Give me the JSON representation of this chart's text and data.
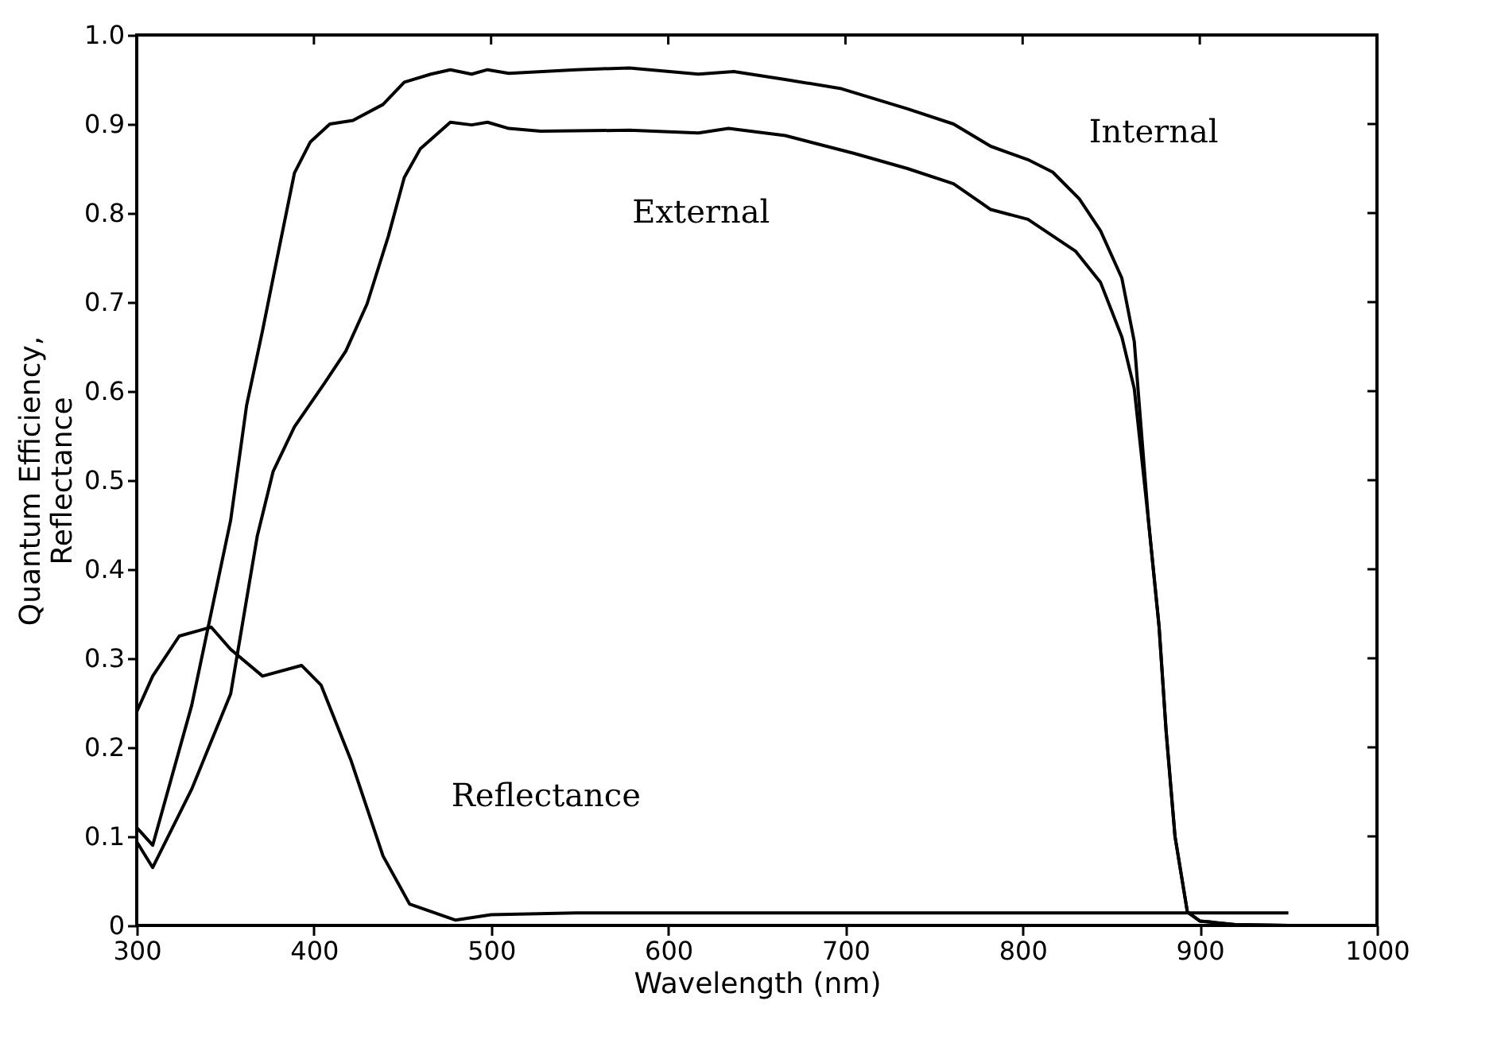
{
  "chart_data": {
    "type": "line",
    "xlabel": "Wavelength (nm)",
    "ylabel": "Quantum Efficiency,\nReflectance",
    "xlim": [
      300,
      1000
    ],
    "xticks": [
      300,
      400,
      500,
      600,
      700,
      800,
      900,
      1000
    ],
    "ylim": [
      0,
      1
    ],
    "yticks": [
      0,
      0.1,
      0.2,
      0.3,
      0.4,
      0.5,
      0.6,
      0.7,
      0.8,
      0.9,
      {
        "value": 1,
        "label": "1.0"
      }
    ],
    "grid": false,
    "legend": false,
    "marker": "none",
    "line_style": "solid",
    "series": [
      {
        "color": "#000000",
        "x": [
          300,
          309,
          331,
          353,
          362,
          371,
          380,
          389,
          398,
          409,
          422,
          439,
          451,
          466,
          477,
          489,
          498,
          510,
          548,
          578,
          617,
          637,
          666,
          697,
          735,
          761,
          782,
          803,
          817,
          832,
          844,
          856,
          863,
          871,
          877,
          881,
          886,
          893,
          900,
          920,
          950
        ],
        "values": [
          0.11,
          0.09,
          0.247,
          0.455,
          0.584,
          0.668,
          0.757,
          0.845,
          0.88,
          0.9,
          0.904,
          0.922,
          0.947,
          0.956,
          0.961,
          0.956,
          0.961,
          0.957,
          0.961,
          0.963,
          0.956,
          0.959,
          0.95,
          0.94,
          0.917,
          0.9,
          0.875,
          0.86,
          0.846,
          0.816,
          0.78,
          0.727,
          0.656,
          0.455,
          0.336,
          0.218,
          0.1,
          0.015,
          0.005,
          0.001,
          0
        ]
      },
      {
        "color": "#000000",
        "x": [
          300,
          309,
          331,
          353,
          368,
          377,
          389,
          406,
          418,
          430,
          442,
          451,
          460,
          477,
          489,
          498,
          510,
          528,
          578,
          617,
          634,
          666,
          705,
          735,
          761,
          782,
          803,
          830,
          844,
          856,
          863,
          871,
          877,
          881,
          886,
          893,
          900,
          920,
          950
        ],
        "values": [
          0.094,
          0.065,
          0.153,
          0.26,
          0.437,
          0.51,
          0.56,
          0.609,
          0.645,
          0.698,
          0.774,
          0.84,
          0.872,
          0.902,
          0.899,
          0.902,
          0.895,
          0.892,
          0.893,
          0.89,
          0.895,
          0.887,
          0.867,
          0.85,
          0.833,
          0.804,
          0.793,
          0.757,
          0.722,
          0.661,
          0.603,
          0.455,
          0.336,
          0.218,
          0.1,
          0.015,
          0.005,
          0.001,
          0
        ]
      },
      {
        "color": "#000000",
        "x": [
          300,
          309,
          324,
          342,
          353,
          371,
          393,
          404,
          421,
          439,
          454,
          480,
          500,
          548,
          600,
          700,
          800,
          900,
          950
        ],
        "values": [
          0.24,
          0.28,
          0.325,
          0.335,
          0.31,
          0.28,
          0.292,
          0.27,
          0.185,
          0.078,
          0.024,
          0.006,
          0.012,
          0.014,
          0.014,
          0.014,
          0.014,
          0.014,
          0.014
        ]
      }
    ],
    "annotations": [
      "Internal",
      "External",
      "Reflectance"
    ]
  }
}
